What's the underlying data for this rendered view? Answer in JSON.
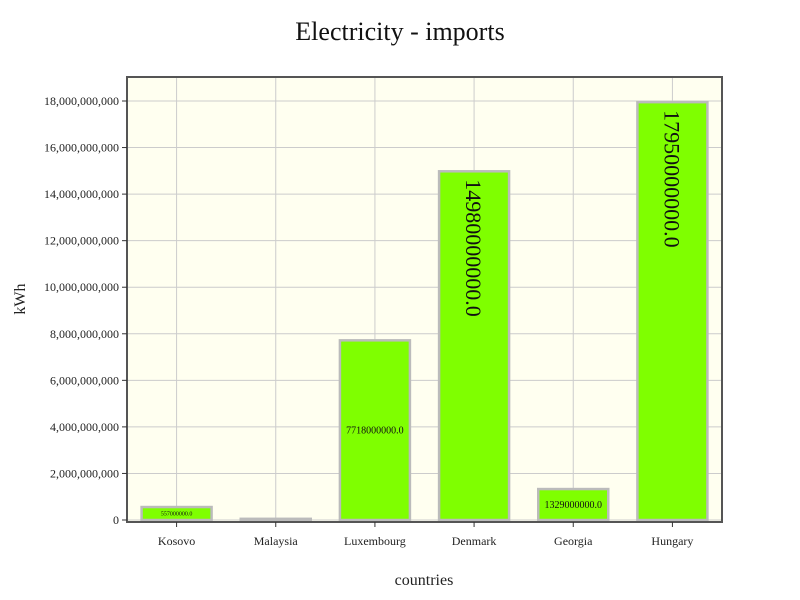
{
  "chart_data": {
    "type": "bar",
    "title": "Electricity - imports",
    "xlabel": "countries",
    "ylabel": "kWh",
    "categories": [
      "Kosovo",
      "Malaysia",
      "Luxembourg",
      "Denmark",
      "Georgia",
      "Hungary"
    ],
    "values": [
      557000000,
      50000000,
      7718000000,
      14980000000,
      1329000000,
      17950000000
    ],
    "data_labels": [
      "557000000.0",
      "",
      "7718000000.0",
      "14980000000.0",
      "1329000000.0",
      "17950000000.0"
    ],
    "ylim": [
      0,
      18500000000
    ],
    "yticks": [
      0,
      2000000000,
      4000000000,
      6000000000,
      8000000000,
      10000000000,
      12000000000,
      14000000000,
      16000000000,
      18000000000
    ],
    "ytick_labels": [
      "0",
      "2,000,000,000",
      "4,000,000,000",
      "6,000,000,000",
      "8,000,000,000",
      "10,000,000,000",
      "12,000,000,000",
      "14,000,000,000",
      "16,000,000,000",
      "18,000,000,000"
    ],
    "grid": true,
    "legend": "none",
    "colors": {
      "bar_fill": "#7fff00",
      "bar_stroke": "#bbbbbb",
      "plot_background": "#fffff0",
      "grid": "#cccccc",
      "frame": "#555555"
    }
  }
}
